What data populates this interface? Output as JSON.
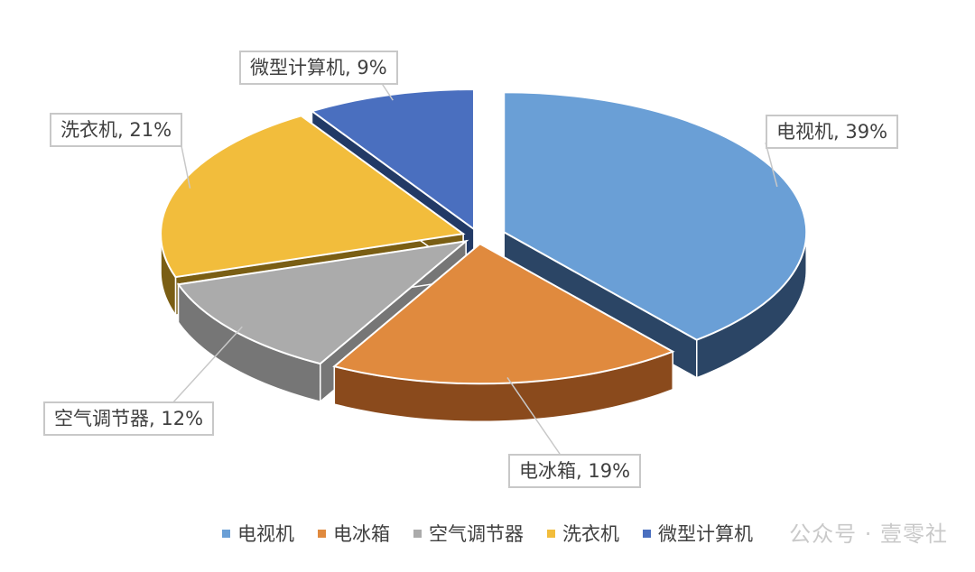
{
  "chart_data": {
    "type": "pie",
    "title": "",
    "series": [
      {
        "name": "电视机",
        "value": 39,
        "label": "电视机, 39%",
        "color": "#6a9fd6",
        "side": "#2b4565"
      },
      {
        "name": "电冰箱",
        "value": 19,
        "label": "电冰箱, 19%",
        "color": "#e08a3e",
        "side": "#8a4a1c"
      },
      {
        "name": "空气调节器",
        "value": 12,
        "label": "空气调节器, 12%",
        "color": "#ababab",
        "side": "#767676"
      },
      {
        "name": "洗衣机",
        "value": 21,
        "label": "洗衣机, 21%",
        "color": "#f2bd3c",
        "side": "#7a5e14"
      },
      {
        "name": "微型计算机",
        "value": 9,
        "label": "微型计算机, 9%",
        "color": "#4a6fbf",
        "side": "#223a66"
      }
    ],
    "legend_position": "bottom",
    "three_d": true,
    "exploded": true
  },
  "watermark": "公众号 · 壹零社"
}
